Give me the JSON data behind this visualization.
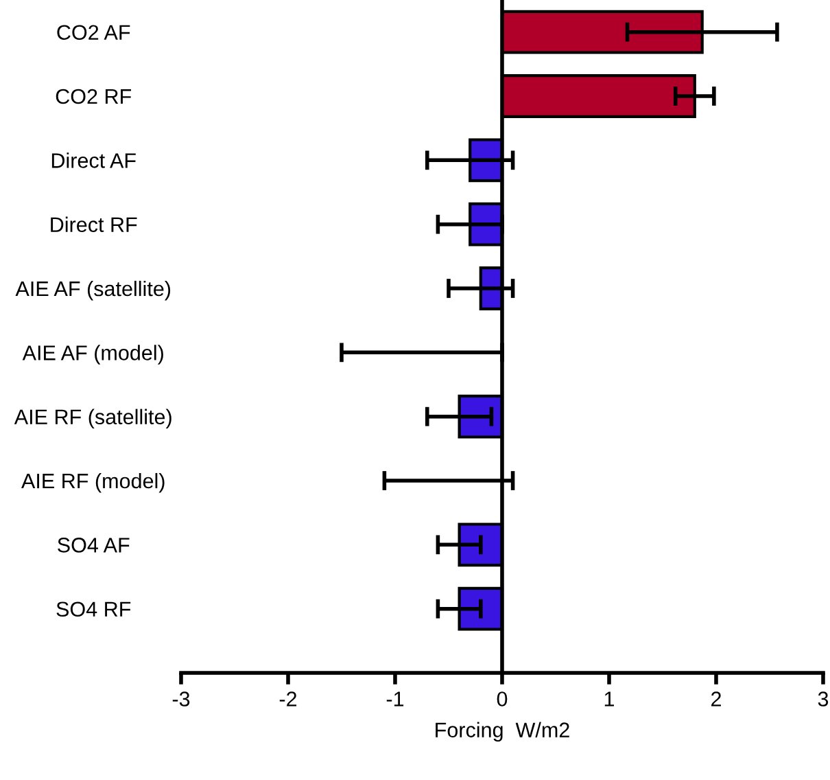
{
  "chart_data": {
    "type": "bar",
    "orientation": "horizontal",
    "categories": [
      "CO2 AF",
      "CO2 RF",
      "Direct AF",
      "Direct RF",
      "AIE AF (satellite)",
      "AIE AF (model)",
      "AIE RF (satellite)",
      "AIE RF (model)",
      "SO4 AF",
      "SO4 RF"
    ],
    "values": [
      1.87,
      1.8,
      -0.3,
      -0.3,
      -0.2,
      0,
      -0.4,
      0,
      -0.4,
      -0.4
    ],
    "errors": [
      0.7,
      0.18,
      0.4,
      0.3,
      0.3,
      [
        -1.5,
        0
      ],
      0.3,
      [
        -1.1,
        0.1
      ],
      0.2,
      0.2
    ],
    "colors": [
      "#b0002a",
      "#b0002a",
      "#3a14e0",
      "#3a14e0",
      "#3a14e0",
      "#3a14e0",
      "#3a14e0",
      "#3a14e0",
      "#3a14e0",
      "#3a14e0"
    ],
    "xlabel": "Forcing  W/m2",
    "xlim": [
      -3,
      3
    ],
    "xticks": [
      -3,
      -2,
      -1,
      0,
      1,
      2,
      3
    ],
    "ref_lines": [
      {
        "axis": "x",
        "value": 0,
        "color": "#000000"
      }
    ],
    "grid": false,
    "legend": false
  }
}
